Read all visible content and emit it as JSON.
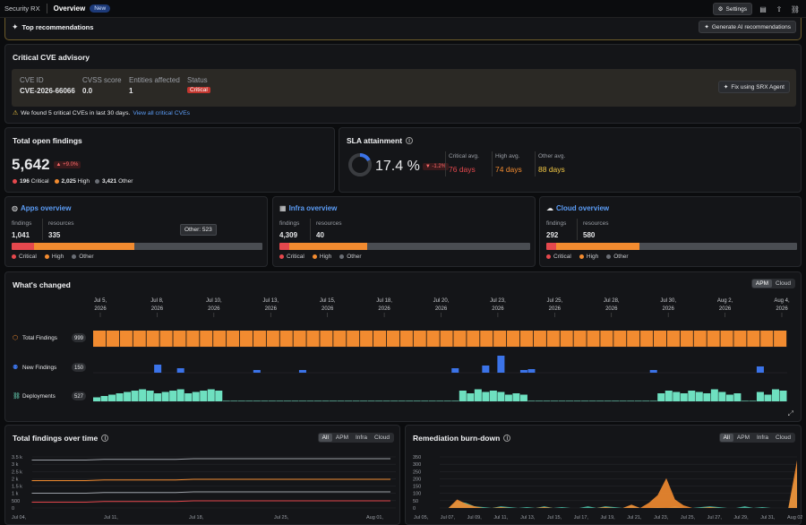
{
  "topbar": {
    "app": "Security RX",
    "tab": "Overview",
    "badge": "New",
    "settings": "Settings"
  },
  "recommendations": {
    "title": "Top recommendations",
    "button": "Generate AI recommendations"
  },
  "cve": {
    "title": "Critical CVE advisory",
    "cols": [
      "CVE ID",
      "CVSS score",
      "Entities affected",
      "Status"
    ],
    "id": "CVE-2026-66066",
    "score": "0.0",
    "entities": "1",
    "status": "Critical",
    "fix": "Fix using SRX Agent",
    "footer": "We found 5 critical CVEs in last 30 days.",
    "footer_link": "View all critical CVEs"
  },
  "open": {
    "title": "Total open findings",
    "value": "5,642",
    "delta": "+9.0%",
    "critical": "196",
    "critical_l": "Critical",
    "high": "2,025",
    "high_l": "High",
    "other": "3,421",
    "other_l": "Other"
  },
  "sla": {
    "title": "SLA attainment",
    "value": "17.4 %",
    "percent": 17.4,
    "delta": "-1.2%",
    "critical_l": "Critical avg.",
    "critical": "76 days",
    "high_l": "High avg.",
    "high": "74 days",
    "other_l": "Other avg.",
    "other": "88 days"
  },
  "apps": {
    "title": "Apps overview",
    "findings_l": "findings",
    "findings": "1,041",
    "resources_l": "resources",
    "resources": "335",
    "tooltip": "Other: 523",
    "critical": 0.09,
    "high": 0.4,
    "other": 0.51
  },
  "infra": {
    "title": "Infra overview",
    "findings_l": "findings",
    "findings": "4,309",
    "resources_l": "resources",
    "resources": "40",
    "critical": 0.04,
    "high": 0.31,
    "other": 0.65
  },
  "cloud": {
    "title": "Cloud overview",
    "findings_l": "findings",
    "findings": "292",
    "resources_l": "resources",
    "resources": "580",
    "critical": 0.04,
    "high": 0.33,
    "other": 0.63
  },
  "legend": {
    "critical": "Critical",
    "high": "High",
    "other": "Other"
  },
  "changed": {
    "title": "What's changed",
    "toggle": [
      "APM",
      "Cloud"
    ],
    "dates": [
      "Jul 5, 2026",
      "Jul 8, 2026",
      "Jul 10, 2026",
      "Jul 13, 2026",
      "Jul 15, 2026",
      "Jul 18, 2026",
      "Jul 20, 2026",
      "Jul 23, 2026",
      "Jul 25, 2026",
      "Jul 28, 2026",
      "Jul 30, 2026",
      "Aug 2, 2026",
      "Aug 4, 2026"
    ],
    "rows": [
      {
        "label": "Total Findings",
        "count": "999"
      },
      {
        "label": "New Findings",
        "count": "150"
      },
      {
        "label": "Deployments",
        "count": "527"
      }
    ],
    "new_findings": [
      0,
      0,
      0,
      0,
      0,
      0,
      0,
      0,
      9,
      0,
      0,
      5,
      0,
      0,
      0,
      0,
      0,
      0,
      0,
      0,
      0,
      3,
      0,
      0,
      0,
      0,
      0,
      3,
      0,
      0,
      0,
      0,
      0,
      0,
      0,
      0,
      0,
      0,
      0,
      0,
      0,
      0,
      0,
      0,
      0,
      0,
      0,
      5,
      0,
      0,
      0,
      8,
      0,
      19,
      0,
      0,
      3,
      4,
      0,
      0,
      0,
      0,
      0,
      0,
      0,
      0,
      0,
      0,
      0,
      0,
      0,
      0,
      0,
      3,
      0,
      0,
      0,
      0,
      0,
      0,
      0,
      0,
      0,
      0,
      0,
      0,
      0,
      7,
      0,
      0,
      0
    ],
    "deployments": [
      3,
      4,
      5,
      6,
      7,
      8,
      9,
      8,
      6,
      7,
      8,
      9,
      6,
      7,
      8,
      9,
      8,
      0,
      0,
      0,
      0,
      0,
      0,
      0,
      0,
      0,
      0,
      0,
      0,
      0,
      0,
      0,
      0,
      0,
      0,
      0,
      0,
      0,
      0,
      0,
      0,
      0,
      0,
      0,
      0,
      0,
      0,
      0,
      8,
      6,
      9,
      7,
      8,
      7,
      5,
      6,
      5,
      0,
      0,
      0,
      0,
      0,
      0,
      0,
      0,
      0,
      0,
      0,
      0,
      0,
      0,
      0,
      0,
      0,
      6,
      8,
      7,
      6,
      8,
      7,
      6,
      9,
      7,
      5,
      6,
      0,
      0,
      7,
      5,
      9,
      8
    ]
  },
  "tfot": {
    "title": "Total findings over time",
    "filters": [
      "All",
      "APM",
      "Infra",
      "Cloud"
    ],
    "yticks": [
      "3.5 k",
      "3 k",
      "2.5 k",
      "2 k",
      "1.5 k",
      "1 k",
      "500",
      "0"
    ],
    "xticks": [
      "Jul 04,",
      "Jul 11,",
      "Jul 18,",
      "Jul 25,",
      "Aug 01,"
    ]
  },
  "burn": {
    "title": "Remediation burn-down",
    "filters": [
      "All",
      "APM",
      "Infra",
      "Cloud"
    ],
    "yticks": [
      "350",
      "300",
      "250",
      "200",
      "150",
      "100",
      "50",
      "0"
    ],
    "xticks": [
      "Jul 05,",
      "Jul 07,",
      "Jul 09,",
      "Jul 11,",
      "Jul 13,",
      "Jul 15,",
      "Jul 17,",
      "Jul 19,",
      "Jul 21,",
      "Jul 23,",
      "Jul 25,",
      "Jul 27,",
      "Jul 29,",
      "Jul 31,",
      "Aug 02,"
    ]
  },
  "colors": {
    "critical": "#e5484d",
    "high": "#f28b30",
    "other": "#4a4d52",
    "new": "#3b73e8",
    "deploy": "#6ee0c0",
    "accent": "#5b9cf5"
  }
}
